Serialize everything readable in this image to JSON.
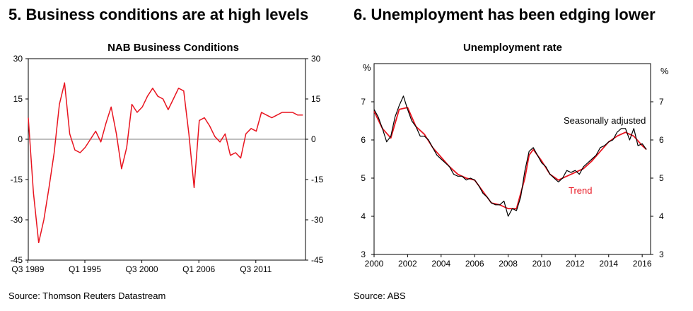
{
  "panels": [
    {
      "heading": "5. Business conditions are at high levels",
      "source": "Source: Thomson Reuters Datastream"
    },
    {
      "heading": "6. Unemployment has been edging lower",
      "source": "Source: ABS"
    }
  ],
  "chart_data": [
    {
      "type": "line",
      "title": "NAB Business Conditions",
      "xlabel": "",
      "ylabel": "",
      "ylim": [
        -45,
        30
      ],
      "yticks": [
        30,
        15,
        0,
        -15,
        -30,
        -45
      ],
      "dual_y_axis": true,
      "xlim": [
        "1989-09",
        "2016-06"
      ],
      "xtick_labels": [
        "Q3 1989",
        "Q1 1995",
        "Q3 2000",
        "Q1 2006",
        "Q3 2011"
      ],
      "grid": false,
      "colors": {
        "series": "#e8141f",
        "axis": "#000000"
      },
      "series": [
        {
          "x": [
            "1989-09",
            "1990-03",
            "1990-09",
            "1991-03",
            "1991-09",
            "1992-03",
            "1992-09",
            "1993-03",
            "1993-09",
            "1994-03",
            "1994-09",
            "1995-03",
            "1995-09",
            "1996-03",
            "1996-09",
            "1997-03",
            "1997-09",
            "1998-03",
            "1998-09",
            "1999-03",
            "1999-09",
            "2000-03",
            "2000-09",
            "2001-03",
            "2001-09",
            "2002-03",
            "2002-09",
            "2003-03",
            "2003-09",
            "2004-03",
            "2004-09",
            "2005-03",
            "2005-09",
            "2006-03",
            "2006-09",
            "2007-03",
            "2007-09",
            "2008-03",
            "2008-09",
            "2009-03",
            "2009-09",
            "2010-03",
            "2010-09",
            "2011-03",
            "2011-09",
            "2012-03",
            "2012-09",
            "2013-03",
            "2013-09",
            "2014-03",
            "2014-09",
            "2015-03",
            "2015-09",
            "2016-03"
          ],
          "values": [
            8,
            -20,
            -38.5,
            -30,
            -18,
            -5,
            13,
            21,
            2,
            -4,
            -5,
            -3,
            0,
            3,
            -1,
            6,
            12,
            2,
            -11,
            -3,
            13,
            10,
            12,
            16,
            19,
            16,
            15,
            11,
            15,
            19,
            18,
            2,
            -18,
            7,
            8,
            5,
            1,
            -1,
            2,
            -6,
            -5,
            -7,
            2,
            4,
            3,
            10,
            9,
            8,
            9,
            10,
            10,
            10,
            9,
            9
          ]
        }
      ]
    },
    {
      "type": "line",
      "title": "Unemployment rate",
      "xlabel": "",
      "ylabel": "%",
      "y_unit_label": "%",
      "ylim": [
        3,
        8
      ],
      "yticks": [
        3,
        4,
        5,
        6,
        7
      ],
      "dual_y_axis": true,
      "xlim": [
        2000,
        2016.5
      ],
      "xticks": [
        2000,
        2002,
        2004,
        2006,
        2008,
        2010,
        2012,
        2014,
        2016
      ],
      "grid": false,
      "colors": {
        "seasonally_adjusted": "#000000",
        "trend": "#e8141f"
      },
      "series": [
        {
          "name": "Seasonally adjusted",
          "x": [
            2000.0,
            2000.25,
            2000.5,
            2000.75,
            2001.0,
            2001.25,
            2001.5,
            2001.75,
            2002.0,
            2002.25,
            2002.5,
            2002.75,
            2003.0,
            2003.25,
            2003.5,
            2003.75,
            2004.0,
            2004.25,
            2004.5,
            2004.75,
            2005.0,
            2005.25,
            2005.5,
            2005.75,
            2006.0,
            2006.25,
            2006.5,
            2006.75,
            2007.0,
            2007.25,
            2007.5,
            2007.75,
            2008.0,
            2008.25,
            2008.5,
            2008.75,
            2009.0,
            2009.25,
            2009.5,
            2009.75,
            2010.0,
            2010.25,
            2010.5,
            2010.75,
            2011.0,
            2011.25,
            2011.5,
            2011.75,
            2012.0,
            2012.25,
            2012.5,
            2012.75,
            2013.0,
            2013.25,
            2013.5,
            2013.75,
            2014.0,
            2014.25,
            2014.5,
            2014.75,
            2015.0,
            2015.25,
            2015.5,
            2015.75,
            2016.0,
            2016.25
          ],
          "values": [
            6.8,
            6.6,
            6.3,
            5.95,
            6.1,
            6.6,
            6.9,
            7.15,
            6.8,
            6.5,
            6.35,
            6.1,
            6.1,
            6.0,
            5.8,
            5.6,
            5.5,
            5.4,
            5.3,
            5.1,
            5.05,
            5.05,
            4.95,
            5.0,
            4.95,
            4.8,
            4.6,
            4.5,
            4.35,
            4.3,
            4.3,
            4.4,
            4.0,
            4.2,
            4.15,
            4.5,
            5.2,
            5.7,
            5.8,
            5.6,
            5.4,
            5.3,
            5.1,
            5.0,
            4.9,
            5.0,
            5.2,
            5.15,
            5.2,
            5.1,
            5.3,
            5.4,
            5.5,
            5.6,
            5.8,
            5.85,
            5.95,
            6.0,
            6.2,
            6.3,
            6.3,
            6.0,
            6.3,
            5.85,
            5.9,
            5.75
          ]
        },
        {
          "name": "Trend",
          "x": [
            2000.0,
            2000.5,
            2001.0,
            2001.5,
            2002.0,
            2002.5,
            2003.0,
            2003.5,
            2004.0,
            2004.5,
            2005.0,
            2005.5,
            2006.0,
            2006.5,
            2007.0,
            2007.5,
            2008.0,
            2008.5,
            2009.0,
            2009.25,
            2009.5,
            2010.0,
            2010.5,
            2011.0,
            2011.5,
            2012.0,
            2012.5,
            2013.0,
            2013.5,
            2014.0,
            2014.5,
            2015.0,
            2015.5,
            2016.0,
            2016.25
          ],
          "values": [
            6.75,
            6.3,
            6.05,
            6.8,
            6.85,
            6.35,
            6.15,
            5.8,
            5.55,
            5.3,
            5.1,
            5.0,
            4.95,
            4.65,
            4.35,
            4.3,
            4.2,
            4.2,
            5.0,
            5.6,
            5.75,
            5.45,
            5.1,
            4.95,
            5.05,
            5.15,
            5.25,
            5.45,
            5.7,
            5.95,
            6.1,
            6.2,
            6.1,
            5.85,
            5.75
          ]
        }
      ],
      "annotations": [
        "Seasonally adjusted",
        "Trend"
      ]
    }
  ]
}
